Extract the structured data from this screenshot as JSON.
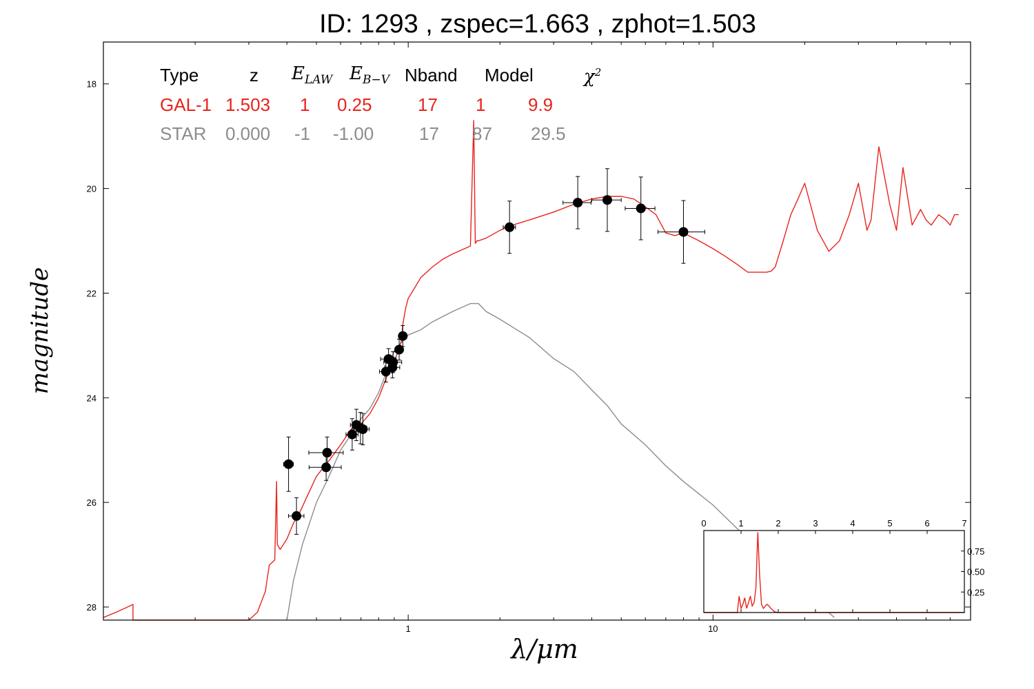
{
  "title": "ID:  1293  , zspec=1.663 , zphot=1.503",
  "xlabel": "λ/μm",
  "ylabel": "magnitude",
  "colors": {
    "galaxy": "#e8231c",
    "star": "#8c8c8c",
    "points": "#000000"
  },
  "table": {
    "headers": {
      "type": "Type",
      "z": "z",
      "elaw": "E",
      "elaw_sub": "LAW",
      "ebv": "E",
      "ebv_sub": "B−V",
      "nband": "Nband",
      "model": "Model",
      "chi2": "χ",
      "chi2_sup": "2"
    },
    "rows": [
      {
        "type": "GAL-1",
        "z": "1.503",
        "elaw": "1",
        "ebv": "0.25",
        "nband": "17",
        "model": "1",
        "chi2": "9.9"
      },
      {
        "type": "STAR",
        "z": "0.000",
        "elaw": "-1",
        "ebv": "-1.00",
        "nband": "17",
        "model": "87",
        "chi2": "29.5"
      }
    ]
  },
  "chart_data": [
    {
      "type": "scatter",
      "x_scale": "log",
      "y_inverted": true,
      "xlim": [
        0.1,
        70
      ],
      "ylim": [
        28.25,
        17.2
      ],
      "yticks": [
        18,
        20,
        22,
        24,
        26,
        28
      ],
      "xticks": [
        1,
        10
      ],
      "xlabel": "λ/μm",
      "ylabel": "magnitude",
      "photometry": [
        {
          "x": 0.405,
          "y": 25.27,
          "xerr": 0.015,
          "yerr": 0.52
        },
        {
          "x": 0.43,
          "y": 26.26,
          "xerr": 0.025,
          "yerr": 0.35
        },
        {
          "x": 0.542,
          "y": 25.05,
          "xerr": 0.07,
          "yerr": 0.3
        },
        {
          "x": 0.538,
          "y": 25.33,
          "xerr": 0.065,
          "yerr": 0.25
        },
        {
          "x": 0.655,
          "y": 24.7,
          "xerr": 0.03,
          "yerr": 0.3
        },
        {
          "x": 0.676,
          "y": 24.52,
          "xerr": 0.03,
          "yerr": 0.3
        },
        {
          "x": 0.697,
          "y": 24.58,
          "xerr": 0.035,
          "yerr": 0.3
        },
        {
          "x": 0.71,
          "y": 24.6,
          "xerr": 0.035,
          "yerr": 0.3
        },
        {
          "x": 0.845,
          "y": 23.5,
          "xerr": 0.04,
          "yerr": 0.2
        },
        {
          "x": 0.862,
          "y": 23.26,
          "xerr": 0.05,
          "yerr": 0.2
        },
        {
          "x": 0.888,
          "y": 23.42,
          "xerr": 0.05,
          "yerr": 0.2
        },
        {
          "x": 0.892,
          "y": 23.32,
          "xerr": 0.06,
          "yerr": 0.2
        },
        {
          "x": 0.934,
          "y": 23.08,
          "xerr": 0.02,
          "yerr": 0.2
        },
        {
          "x": 0.96,
          "y": 22.82,
          "xerr": 0.025,
          "yerr": 0.2
        },
        {
          "x": 2.15,
          "y": 20.74,
          "xerr": 0.1,
          "yerr": 0.5
        },
        {
          "x": 3.6,
          "y": 20.27,
          "xerr": 0.38,
          "yerr": 0.5
        },
        {
          "x": 4.5,
          "y": 20.22,
          "xerr": 0.5,
          "yerr": 0.6
        },
        {
          "x": 5.8,
          "y": 20.38,
          "xerr": 0.65,
          "yerr": 0.6
        },
        {
          "x": 8.0,
          "y": 20.83,
          "xerr": 1.4,
          "yerr": 0.6
        }
      ],
      "series": [
        {
          "name": "GAL-1",
          "x": [
            0.1,
            0.11,
            0.12,
            0.125,
            0.125,
            0.13,
            0.2,
            0.3,
            0.32,
            0.34,
            0.35,
            0.365,
            0.37,
            0.372,
            0.38,
            0.4,
            0.42,
            0.44,
            0.5,
            0.55,
            0.6,
            0.65,
            0.7,
            0.75,
            0.8,
            0.85,
            0.9,
            0.93,
            0.95,
            0.96,
            0.98,
            1.0,
            1.05,
            1.1,
            1.15,
            1.2,
            1.3,
            1.4,
            1.6,
            1.64,
            1.66,
            1.68,
            1.7,
            1.8,
            2.0,
            2.2,
            2.5,
            3.0,
            3.5,
            4.0,
            4.5,
            5.0,
            5.5,
            6.0,
            6.5,
            7.0,
            7.5,
            8.0,
            9.0,
            10.0,
            11.0,
            12.0,
            13.0,
            14.0,
            15.0,
            15.5,
            16.0,
            17.0,
            18.0,
            19.0,
            20.0,
            22.0,
            24.0,
            26.0,
            28.0,
            30.0,
            32.0,
            33.0,
            35.0,
            38.0,
            40.0,
            42.0,
            45.0,
            48.0,
            50.0,
            52.0,
            55.0,
            58.0,
            60.0,
            62.0,
            64.0
          ],
          "y": [
            28.2,
            28.1,
            28.0,
            27.95,
            28.25,
            28.3,
            28.3,
            28.3,
            28.1,
            27.7,
            27.2,
            27.1,
            25.6,
            26.8,
            26.9,
            26.7,
            26.4,
            26.2,
            25.5,
            25.2,
            24.9,
            24.6,
            24.5,
            24.3,
            24.0,
            23.6,
            23.3,
            23.1,
            22.9,
            22.6,
            22.3,
            22.1,
            21.9,
            21.7,
            21.6,
            21.5,
            21.35,
            21.25,
            21.1,
            18.7,
            21.05,
            21.0,
            21.0,
            20.95,
            20.8,
            20.7,
            20.6,
            20.45,
            20.3,
            20.2,
            20.15,
            20.15,
            20.2,
            20.35,
            20.5,
            20.85,
            20.9,
            20.85,
            21.0,
            21.15,
            21.3,
            21.45,
            21.6,
            21.6,
            21.6,
            21.58,
            21.5,
            21.0,
            20.5,
            20.2,
            19.9,
            20.8,
            21.2,
            21.0,
            20.5,
            19.9,
            20.8,
            20.6,
            19.2,
            20.3,
            20.8,
            19.6,
            20.7,
            20.4,
            20.6,
            20.7,
            20.5,
            20.6,
            20.7,
            20.5,
            20.5
          ]
        },
        {
          "name": "STAR",
          "x": [
            0.4,
            0.42,
            0.45,
            0.5,
            0.55,
            0.6,
            0.65,
            0.7,
            0.75,
            0.8,
            0.85,
            0.9,
            1.0,
            1.1,
            1.2,
            1.4,
            1.6,
            1.7,
            1.8,
            2.0,
            2.2,
            2.5,
            3.0,
            3.5,
            4.0,
            4.5,
            5.0,
            6.0,
            7.0,
            8.0,
            10.0,
            12.0,
            15.0,
            20.0,
            25.0
          ],
          "y": [
            28.3,
            27.5,
            26.8,
            26.0,
            25.5,
            25.0,
            24.7,
            24.4,
            24.2,
            23.9,
            23.5,
            23.1,
            22.8,
            22.7,
            22.55,
            22.35,
            22.2,
            22.2,
            22.35,
            22.5,
            22.65,
            22.85,
            23.25,
            23.5,
            23.85,
            24.15,
            24.5,
            24.9,
            25.3,
            25.6,
            26.05,
            26.5,
            27.0,
            27.7,
            28.2
          ]
        }
      ]
    },
    {
      "type": "line",
      "xlim": [
        0,
        7
      ],
      "ylim": [
        0,
        1
      ],
      "xticks": [
        0,
        1,
        2,
        3,
        4,
        5,
        6,
        7
      ],
      "yticks": [
        0.25,
        0.5,
        0.75
      ],
      "series": [
        {
          "name": "",
          "x": [
            0,
            0.9,
            0.95,
            1.0,
            1.05,
            1.1,
            1.15,
            1.2,
            1.25,
            1.3,
            1.35,
            1.4,
            1.45,
            1.5,
            1.55,
            1.6,
            1.65,
            1.7,
            1.75,
            1.8,
            1.9,
            2.0,
            7.0
          ],
          "y": [
            0,
            0,
            0.2,
            0.05,
            0.1,
            0.18,
            0.05,
            0.12,
            0.2,
            0.08,
            0.12,
            0.3,
            0.98,
            0.45,
            0.1,
            0.05,
            0.08,
            0.1,
            0.08,
            0.05,
            0.01,
            0,
            0
          ]
        }
      ]
    }
  ]
}
